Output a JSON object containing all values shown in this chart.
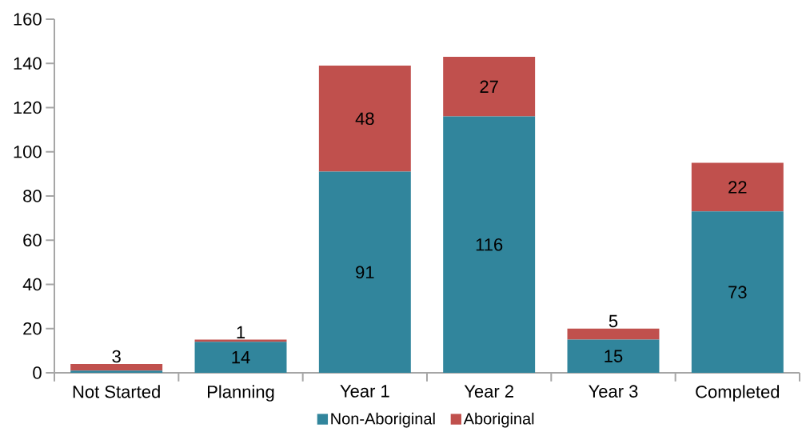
{
  "chart_data": {
    "type": "bar",
    "stacked": true,
    "categories": [
      "Not Started",
      "Planning",
      "Year 1",
      "Year 2",
      "Year 3",
      "Completed"
    ],
    "series": [
      {
        "name": "Non-Aboriginal",
        "color": "#31859c",
        "values": [
          1,
          14,
          91,
          116,
          15,
          73
        ],
        "value_labels": [
          null,
          "14",
          "91",
          "116",
          "15",
          "73"
        ]
      },
      {
        "name": "Aboriginal",
        "color": "#c0504d",
        "values": [
          3,
          1,
          48,
          27,
          5,
          22
        ],
        "value_labels": [
          "3",
          "1",
          "48",
          "27",
          "5",
          "22"
        ]
      }
    ],
    "ylim": [
      0,
      160
    ],
    "yticks": [
      0,
      20,
      40,
      60,
      80,
      100,
      120,
      140,
      160
    ],
    "grid": false,
    "legend": "bottom"
  }
}
